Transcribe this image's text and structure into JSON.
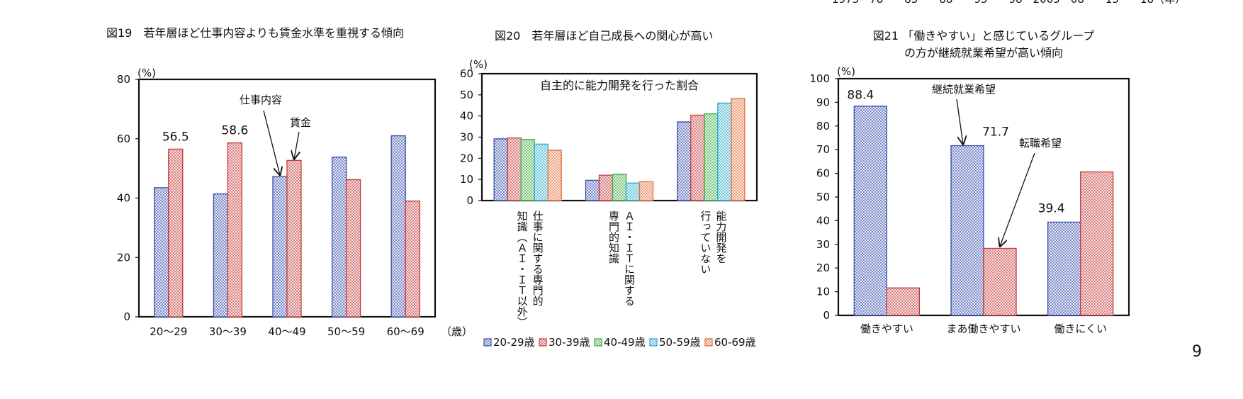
{
  "page": {
    "top_axis_cut": "1975　78　　85　　88　　95　　98　2005　08　　13　　18（年）",
    "page_number": "9"
  },
  "chart_data": [
    {
      "type": "bar",
      "title": "図19　若年層ほど仕事内容よりも賃金水準を重視する傾向",
      "ylabel": "(%)",
      "xlabel": "（歳）",
      "categories": [
        "20～29",
        "30～39",
        "40～49",
        "50～59",
        "60～69"
      ],
      "ylim": [
        0,
        80
      ],
      "yticks": [
        0,
        20,
        40,
        60,
        80
      ],
      "series": [
        {
          "name": "仕事内容",
          "values": [
            43.5,
            41.4,
            47.3,
            53.8,
            61.0
          ],
          "color": "#3a4fa8"
        },
        {
          "name": "賃金",
          "values": [
            56.5,
            58.6,
            52.7,
            46.2,
            39.0
          ],
          "color": "#c43b3b"
        }
      ],
      "data_labels": [
        {
          "text": "56.5",
          "category": 0
        },
        {
          "text": "58.6",
          "category": 1
        }
      ],
      "legend": "callouts-on-bars"
    },
    {
      "type": "bar",
      "title": "図20　若年層ほど自己成長への関心が高い",
      "subtitle": "自主的に能力開発を行った割合",
      "ylabel": "(%)",
      "categories": [
        "仕事に関する専門的知識（ＡＩ・ＩＴ以外）",
        "ＡＩ・ＩＴに関する専門的知識",
        "能力開発を行っていない"
      ],
      "category_lines": [
        [
          "仕事に関する専門的",
          "知識（ＡＩ・ＩＴ以外）"
        ],
        [
          "ＡＩ・ＩＴに関する",
          "専門的知識"
        ],
        [
          "能力開発を",
          "行っていない"
        ]
      ],
      "ylim": [
        0,
        60
      ],
      "yticks": [
        0,
        10,
        20,
        30,
        40,
        50,
        60
      ],
      "series": [
        {
          "name": "20-29歳",
          "values": [
            29.2,
            9.6,
            37.2
          ],
          "color": "#3a4fa8"
        },
        {
          "name": "30-39歳",
          "values": [
            29.6,
            12.0,
            40.4
          ],
          "color": "#c43b3b"
        },
        {
          "name": "40-49歳",
          "values": [
            28.9,
            12.4,
            41.0
          ],
          "color": "#3aa83f"
        },
        {
          "name": "50-59歳",
          "values": [
            26.7,
            8.3,
            46.1
          ],
          "color": "#2aa8c8"
        },
        {
          "name": "60-69歳",
          "values": [
            23.8,
            8.9,
            48.3
          ],
          "color": "#e0703a"
        }
      ],
      "legend": "bottom"
    },
    {
      "type": "bar",
      "title": "図21 「働きやすい」と感じているグループ",
      "subtitle": "の方が継続就業希望が高い傾向",
      "ylabel": "(%)",
      "categories": [
        "働きやすい",
        "まあ働きやすい",
        "働きにくい"
      ],
      "ylim": [
        0,
        100
      ],
      "yticks": [
        0,
        10,
        20,
        30,
        40,
        50,
        60,
        70,
        80,
        90,
        100
      ],
      "series": [
        {
          "name": "継続就業希望",
          "values": [
            88.4,
            71.7,
            39.4
          ],
          "color": "#3a4fa8"
        },
        {
          "name": "転職希望",
          "values": [
            11.6,
            28.3,
            60.6
          ],
          "color": "#c43b3b"
        }
      ],
      "data_labels": [
        {
          "text": "88.4",
          "category": 0
        },
        {
          "text": "71.7",
          "category": 1
        },
        {
          "text": "39.4",
          "category": 2
        }
      ],
      "legend": "callouts-on-bars"
    }
  ]
}
